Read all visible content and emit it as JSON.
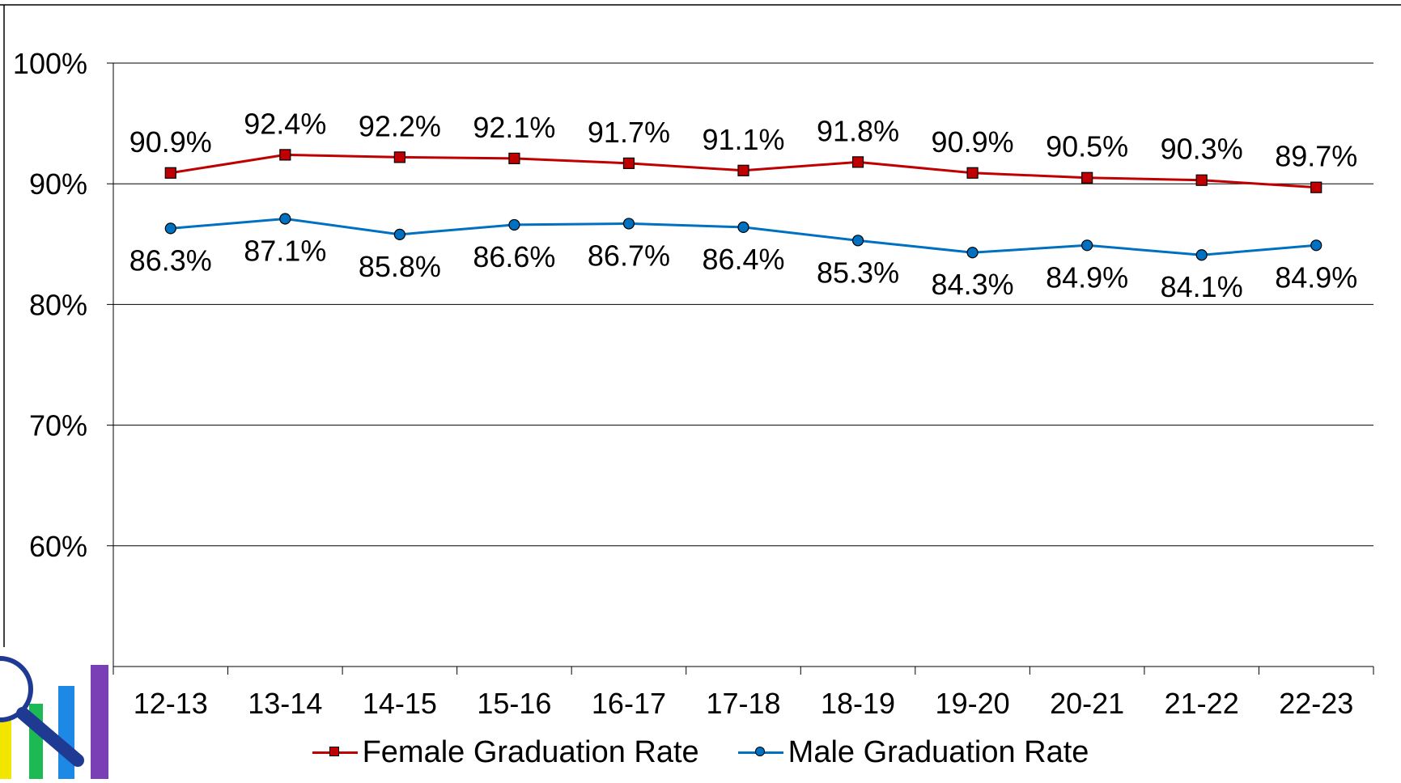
{
  "chart_data": {
    "type": "line",
    "categories": [
      "12-13",
      "13-14",
      "14-15",
      "15-16",
      "16-17",
      "17-18",
      "18-19",
      "19-20",
      "20-21",
      "21-22",
      "22-23"
    ],
    "series": [
      {
        "name": "Female Graduation Rate",
        "color": "#C00000",
        "marker": "square",
        "values": [
          90.9,
          92.4,
          92.2,
          92.1,
          91.7,
          91.1,
          91.8,
          90.9,
          90.5,
          90.3,
          89.7
        ],
        "labels": [
          "90.9%",
          "92.4%",
          "92.2%",
          "92.1%",
          "91.7%",
          "91.1%",
          "91.8%",
          "90.9%",
          "90.5%",
          "90.3%",
          "89.7%"
        ]
      },
      {
        "name": "Male Graduation Rate",
        "color": "#0070C0",
        "marker": "circle",
        "values": [
          86.3,
          87.1,
          85.8,
          86.6,
          86.7,
          86.4,
          85.3,
          84.3,
          84.9,
          84.1,
          84.9
        ],
        "labels": [
          "86.3%",
          "87.1%",
          "85.8%",
          "86.6%",
          "86.7%",
          "86.4%",
          "85.3%",
          "84.3%",
          "84.9%",
          "84.1%",
          "84.9%"
        ]
      }
    ],
    "ylim": [
      50,
      100
    ],
    "yticks": [
      60,
      70,
      80,
      90,
      100
    ],
    "ytick_labels": [
      "60%",
      "70%",
      "80%",
      "90%",
      "100%"
    ],
    "grid": true,
    "legend_position": "bottom"
  },
  "logo": {
    "name": "bar-chart-magnifier-logo"
  }
}
